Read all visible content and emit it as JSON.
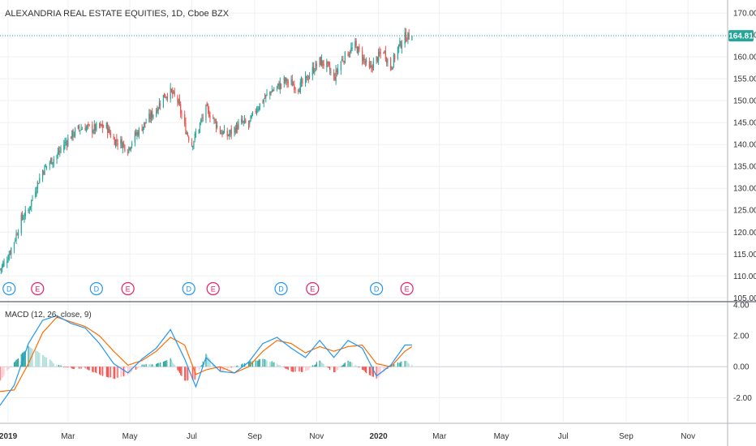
{
  "colors": {
    "up": "#26a69a",
    "down": "#ef5350",
    "macd_line": "#2196f3",
    "signal_line": "#ff6d00",
    "price_line": "#26a69a",
    "dividend": "#2196f3",
    "earnings": "#e91e63",
    "grid": "#eef0f3",
    "axis_text": "#333333"
  },
  "header": {
    "title": "ALEXANDRIA REAL ESTATE EQUITIES, 1D, Cboe BZX"
  },
  "price_badge": "164.81",
  "macd_pane": {
    "label": "MACD (12, 26, close, 9)"
  },
  "events": [
    {
      "type": "D",
      "date": "2019-01-02"
    },
    {
      "type": "E",
      "date": "2019-01-30"
    },
    {
      "type": "D",
      "date": "2019-03-29"
    },
    {
      "type": "E",
      "date": "2019-04-29"
    },
    {
      "type": "D",
      "date": "2019-06-28"
    },
    {
      "type": "E",
      "date": "2019-07-22"
    },
    {
      "type": "D",
      "date": "2019-09-27"
    },
    {
      "type": "E",
      "date": "2019-10-28"
    },
    {
      "type": "D",
      "date": "2019-12-30"
    },
    {
      "type": "E",
      "date": "2020-01-29"
    }
  ],
  "chart_data": {
    "type": "candlestick",
    "title": "ALEXANDRIA REAL ESTATE EQUITIES, 1D, Cboe BZX",
    "last_price": 164.81,
    "x_range": [
      "2018-12-24",
      "2020-12-10"
    ],
    "price_axis": {
      "range": [
        104.5,
        171.5
      ],
      "ticks": [
        "170.00",
        "165.00",
        "160.00",
        "155.00",
        "150.00",
        "145.00",
        "140.00",
        "135.00",
        "130.00",
        "125.00",
        "120.00",
        "115.00",
        "110.00",
        "105.00"
      ]
    },
    "macd_axis": {
      "range": [
        -3.55,
        4.1
      ],
      "ticks": [
        "4.00",
        "2.00",
        "0.00",
        "-2.00"
      ]
    },
    "time_axis": {
      "ticks": [
        {
          "label": "2019",
          "date": "2019-01-01",
          "bold": true
        },
        {
          "label": "Mar",
          "date": "2019-03-01"
        },
        {
          "label": "May",
          "date": "2019-05-01"
        },
        {
          "label": "Jul",
          "date": "2019-07-01"
        },
        {
          "label": "Sep",
          "date": "2019-09-01"
        },
        {
          "label": "Nov",
          "date": "2019-11-01"
        },
        {
          "label": "2020",
          "date": "2020-01-01",
          "bold": true
        },
        {
          "label": "Mar",
          "date": "2020-03-01"
        },
        {
          "label": "May",
          "date": "2020-05-01"
        },
        {
          "label": "Jul",
          "date": "2020-07-01"
        },
        {
          "label": "Sep",
          "date": "2020-09-01"
        },
        {
          "label": "Nov",
          "date": "2020-11-01"
        }
      ]
    },
    "close_trend": [
      [
        "2018-12-24",
        111.5
      ],
      [
        "2018-12-31",
        114.0
      ],
      [
        "2019-01-07",
        118.0
      ],
      [
        "2019-01-14",
        123.0
      ],
      [
        "2019-01-21",
        125.0
      ],
      [
        "2019-01-28",
        130.0
      ],
      [
        "2019-02-04",
        134.0
      ],
      [
        "2019-02-11",
        136.0
      ],
      [
        "2019-02-18",
        137.5
      ],
      [
        "2019-02-25",
        140.0
      ],
      [
        "2019-03-04",
        142.0
      ],
      [
        "2019-03-11",
        143.5
      ],
      [
        "2019-03-18",
        144.0
      ],
      [
        "2019-03-25",
        143.5
      ],
      [
        "2019-04-01",
        144.0
      ],
      [
        "2019-04-08",
        144.0
      ],
      [
        "2019-04-15",
        141.0
      ],
      [
        "2019-04-22",
        140.5
      ],
      [
        "2019-04-29",
        139.0
      ],
      [
        "2019-05-06",
        142.0
      ],
      [
        "2019-05-13",
        144.0
      ],
      [
        "2019-05-20",
        146.0
      ],
      [
        "2019-05-27",
        148.0
      ],
      [
        "2019-06-03",
        151.0
      ],
      [
        "2019-06-10",
        152.0
      ],
      [
        "2019-06-17",
        150.0
      ],
      [
        "2019-06-24",
        144.0
      ],
      [
        "2019-07-01",
        140.0
      ],
      [
        "2019-07-08",
        144.0
      ],
      [
        "2019-07-15",
        148.0
      ],
      [
        "2019-07-22",
        146.0
      ],
      [
        "2019-07-29",
        143.0
      ],
      [
        "2019-08-05",
        142.0
      ],
      [
        "2019-08-12",
        143.5
      ],
      [
        "2019-08-19",
        145.0
      ],
      [
        "2019-08-26",
        144.5
      ],
      [
        "2019-09-02",
        148.0
      ],
      [
        "2019-09-09",
        150.0
      ],
      [
        "2019-09-16",
        152.0
      ],
      [
        "2019-09-23",
        153.0
      ],
      [
        "2019-09-30",
        154.5
      ],
      [
        "2019-10-07",
        154.0
      ],
      [
        "2019-10-14",
        153.0
      ],
      [
        "2019-10-21",
        154.5
      ],
      [
        "2019-10-28",
        157.0
      ],
      [
        "2019-11-04",
        159.0
      ],
      [
        "2019-11-11",
        158.0
      ],
      [
        "2019-11-18",
        155.0
      ],
      [
        "2019-11-25",
        159.0
      ],
      [
        "2019-12-02",
        161.0
      ],
      [
        "2019-12-09",
        162.5
      ],
      [
        "2019-12-16",
        160.0
      ],
      [
        "2019-12-23",
        157.0
      ],
      [
        "2019-12-30",
        159.5
      ],
      [
        "2020-01-06",
        161.5
      ],
      [
        "2020-01-13",
        157.5
      ],
      [
        "2020-01-20",
        162.0
      ],
      [
        "2020-01-27",
        164.5
      ],
      [
        "2020-02-03",
        164.81
      ]
    ],
    "macd_trend": [
      [
        "2018-12-24",
        -2.5
      ],
      [
        "2019-01-07",
        -1.2
      ],
      [
        "2019-01-21",
        1.5
      ],
      [
        "2019-02-04",
        3.0
      ],
      [
        "2019-02-18",
        3.3
      ],
      [
        "2019-03-04",
        2.8
      ],
      [
        "2019-03-18",
        2.5
      ],
      [
        "2019-04-01",
        1.5
      ],
      [
        "2019-04-15",
        0.2
      ],
      [
        "2019-04-29",
        -0.4
      ],
      [
        "2019-05-13",
        0.5
      ],
      [
        "2019-05-27",
        1.2
      ],
      [
        "2019-06-10",
        2.4
      ],
      [
        "2019-06-24",
        0.5
      ],
      [
        "2019-07-05",
        -1.3
      ],
      [
        "2019-07-15",
        0.6
      ],
      [
        "2019-07-29",
        -0.3
      ],
      [
        "2019-08-12",
        -0.4
      ],
      [
        "2019-08-26",
        0.3
      ],
      [
        "2019-09-09",
        1.5
      ],
      [
        "2019-09-23",
        1.9
      ],
      [
        "2019-10-07",
        1.2
      ],
      [
        "2019-10-21",
        0.6
      ],
      [
        "2019-11-04",
        1.7
      ],
      [
        "2019-11-18",
        0.6
      ],
      [
        "2019-12-02",
        1.7
      ],
      [
        "2019-12-16",
        1.2
      ],
      [
        "2019-12-30",
        -0.6
      ],
      [
        "2020-01-13",
        0.1
      ],
      [
        "2020-01-27",
        1.4
      ],
      [
        "2020-02-03",
        1.4
      ]
    ],
    "signal_trend": [
      [
        "2018-12-24",
        -1.6
      ],
      [
        "2019-01-07",
        -1.5
      ],
      [
        "2019-01-21",
        0.2
      ],
      [
        "2019-02-04",
        2.2
      ],
      [
        "2019-02-18",
        3.2
      ],
      [
        "2019-03-04",
        2.9
      ],
      [
        "2019-03-18",
        2.6
      ],
      [
        "2019-04-01",
        2.0
      ],
      [
        "2019-04-15",
        1.0
      ],
      [
        "2019-04-29",
        0.1
      ],
      [
        "2019-05-13",
        0.4
      ],
      [
        "2019-05-27",
        1.0
      ],
      [
        "2019-06-10",
        1.9
      ],
      [
        "2019-06-24",
        1.4
      ],
      [
        "2019-07-05",
        -0.5
      ],
      [
        "2019-07-15",
        -0.2
      ],
      [
        "2019-07-29",
        0.0
      ],
      [
        "2019-08-12",
        -0.4
      ],
      [
        "2019-08-26",
        0.0
      ],
      [
        "2019-09-09",
        1.0
      ],
      [
        "2019-09-23",
        1.7
      ],
      [
        "2019-10-07",
        1.5
      ],
      [
        "2019-10-21",
        0.9
      ],
      [
        "2019-11-04",
        1.3
      ],
      [
        "2019-11-18",
        1.0
      ],
      [
        "2019-12-02",
        1.3
      ],
      [
        "2019-12-16",
        1.4
      ],
      [
        "2019-12-30",
        0.2
      ],
      [
        "2020-01-13",
        0.0
      ],
      [
        "2020-01-27",
        1.0
      ],
      [
        "2020-02-03",
        1.3
      ]
    ]
  }
}
